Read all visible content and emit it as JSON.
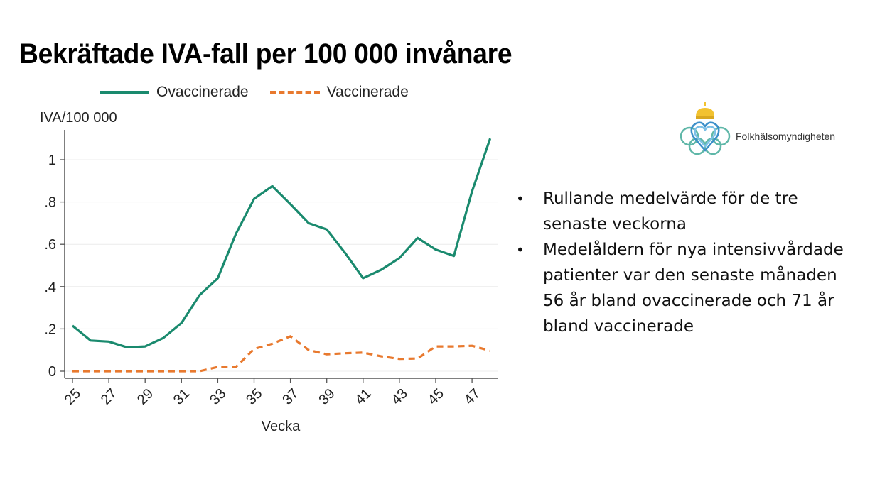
{
  "slide": {
    "title": "Bekräftade IVA-fall per 100 000 invånare",
    "logo": {
      "icon": "crown-heart-logo-icon",
      "name": "Folkhälsomyndigheten"
    },
    "bullets": [
      "Rullande medelvärde för de tre senaste veckorna",
      "Medelåldern för nya intensivvårdade patienter var den senaste månaden 56 år bland ovaccinerade och 71 år bland vaccinerade"
    ]
  },
  "legend": [
    {
      "label": "Ovaccinerade",
      "style": "solid",
      "color": "#1a8a6e"
    },
    {
      "label": "Vaccinerade",
      "style": "dashed",
      "color": "#e8792e"
    }
  ],
  "chart_data": {
    "type": "line",
    "title": "Bekräftade IVA-fall per 100 000 invånare",
    "xlabel": "Vecka",
    "ylabel": "IVA/100 000",
    "x": [
      25,
      26,
      27,
      28,
      29,
      30,
      31,
      32,
      33,
      34,
      35,
      36,
      37,
      38,
      39,
      40,
      41,
      42,
      43,
      44,
      45,
      46,
      47,
      48
    ],
    "xticks": [
      "25",
      "27",
      "29",
      "31",
      "33",
      "35",
      "37",
      "39",
      "41",
      "43",
      "45",
      "47"
    ],
    "yticks": [
      "0",
      ".2",
      ".4",
      ".6",
      ".8",
      "1"
    ],
    "ylim": [
      0,
      1.1
    ],
    "grid": true,
    "legend_position": "top",
    "series": [
      {
        "name": "Ovaccinerade",
        "color": "#1a8a6e",
        "style": "solid",
        "values": [
          0.215,
          0.145,
          0.14,
          0.113,
          0.117,
          0.157,
          0.228,
          0.36,
          0.44,
          0.65,
          0.815,
          0.875,
          0.79,
          0.7,
          0.67,
          0.56,
          0.44,
          0.48,
          0.535,
          0.63,
          0.575,
          0.545,
          0.85,
          1.1
        ]
      },
      {
        "name": "Vaccinerade",
        "color": "#e8792e",
        "style": "dashed",
        "values": [
          0,
          0,
          0,
          0,
          0,
          0,
          0,
          0,
          0.02,
          0.02,
          0.105,
          0.13,
          0.165,
          0.1,
          0.08,
          0.085,
          0.088,
          0.07,
          0.058,
          0.06,
          0.117,
          0.117,
          0.12,
          0.097
        ]
      }
    ]
  }
}
